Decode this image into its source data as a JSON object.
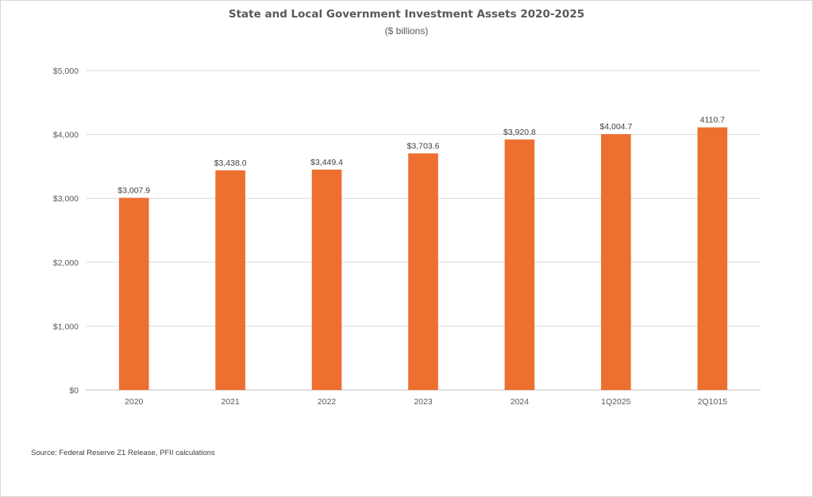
{
  "chart_data": {
    "type": "bar",
    "title": "State and Local Government Investment Assets 2020-2025",
    "subtitle": "($ billions)",
    "xlabel": "",
    "ylabel": "",
    "categories": [
      "2020",
      "2021",
      "2022",
      "2023",
      "2024",
      "1Q2025",
      "2Q1015"
    ],
    "values": [
      3007.9,
      3438.0,
      3449.4,
      3703.6,
      3920.8,
      4004.7,
      4110.7
    ],
    "data_labels": [
      "$3,007.9",
      "$3,438.0",
      "$3,449.4",
      "$3,703.6",
      "$3,920.8",
      "$4,004.7",
      "4110.7"
    ],
    "ylim": [
      0,
      5000
    ],
    "yticks": [
      0,
      1000,
      2000,
      3000,
      4000,
      5000
    ],
    "ytick_labels": [
      "$0",
      "$1,000",
      "$2,000",
      "$3,000",
      "$4,000",
      "$5,000"
    ],
    "grid": true,
    "legend": "none",
    "bar_color": "#ED7031",
    "source": "Source: Federal Reserve Z1 Release, PFII calculations"
  }
}
